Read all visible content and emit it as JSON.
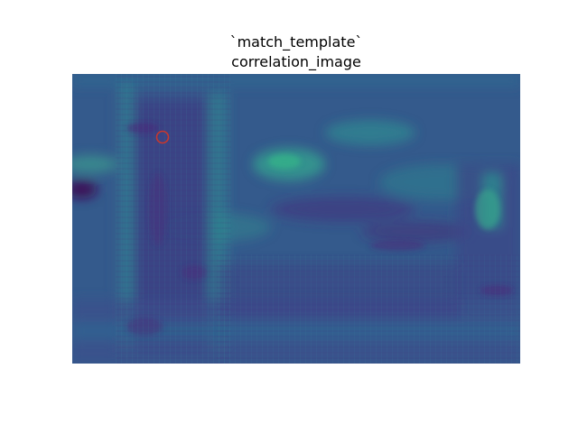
{
  "figure": {
    "title_lines": [
      "`match_template`",
      "correlation_image"
    ]
  },
  "image": {
    "colormap": "viridis",
    "description_shown": "grayscale correlation heatmap rendered with viridis colormap",
    "marker": {
      "shape": "circle",
      "color": "#c0392b"
    }
  },
  "colors": {
    "background": "#ffffff",
    "viridis_low": "#3f0a5c",
    "viridis_mid": "#2d6f8e",
    "viridis_high": "#3bb58b",
    "marker": "#c8372d"
  }
}
